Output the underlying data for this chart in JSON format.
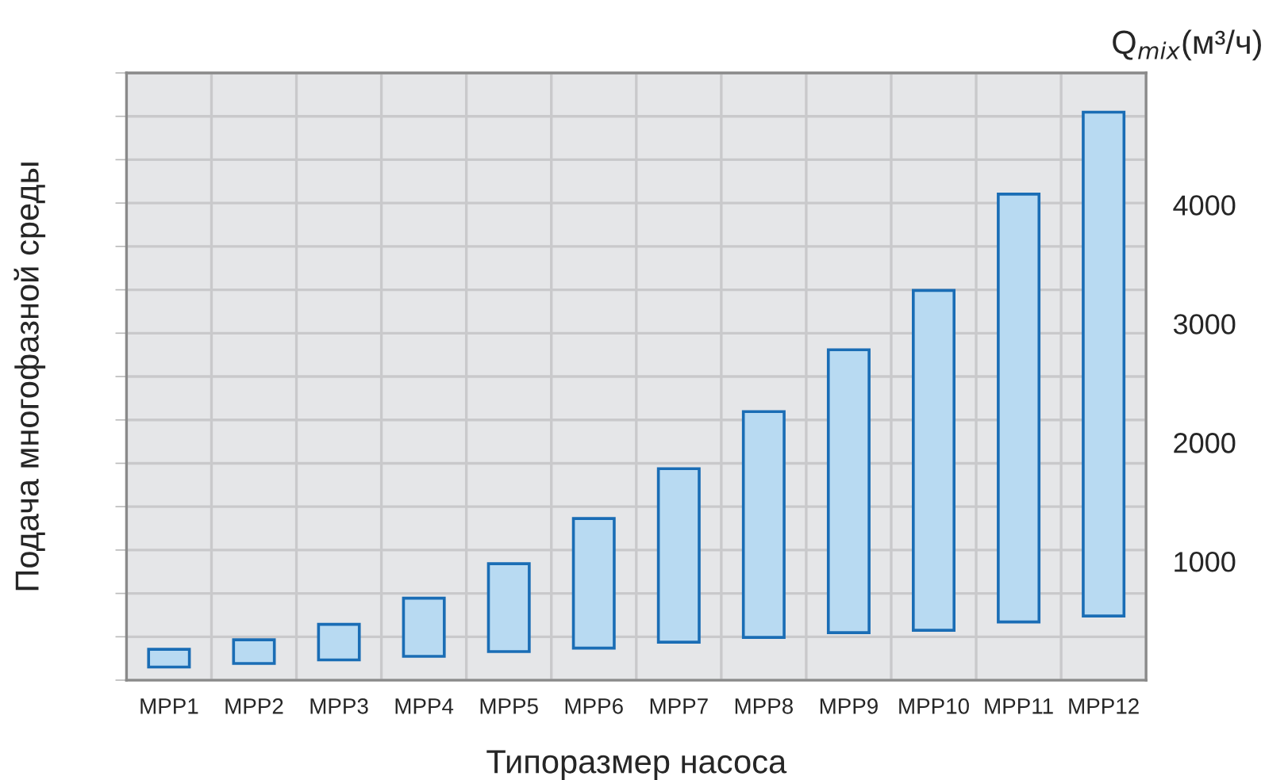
{
  "chart_data": {
    "type": "bar",
    "xlabel": "Типоразмер насоса",
    "ylabel": "Подача многофазной среды",
    "y2label": "Q$_{mix}$(м³/ч)",
    "categories": [
      "MPP1",
      "MPP2",
      "MPP3",
      "MPP4",
      "MPP5",
      "MPP6",
      "MPP7",
      "MPP8",
      "MPP9",
      "MPP10",
      "MPP11",
      "MPP12"
    ],
    "series": [
      {
        "color": "#b8daf2",
        "base": [
          110,
          140,
          170,
          200,
          240,
          270,
          320,
          360,
          400,
          420,
          490,
          540
        ],
        "values": [
          150,
          200,
          300,
          490,
          740,
          1090,
          1460,
          1900,
          2380,
          2860,
          3600,
          4240
        ]
      }
    ],
    "ylim": [
      0,
      5110
    ],
    "yticks": [
      1000,
      2000,
      3000,
      4000
    ],
    "grid": true,
    "legend": false
  }
}
